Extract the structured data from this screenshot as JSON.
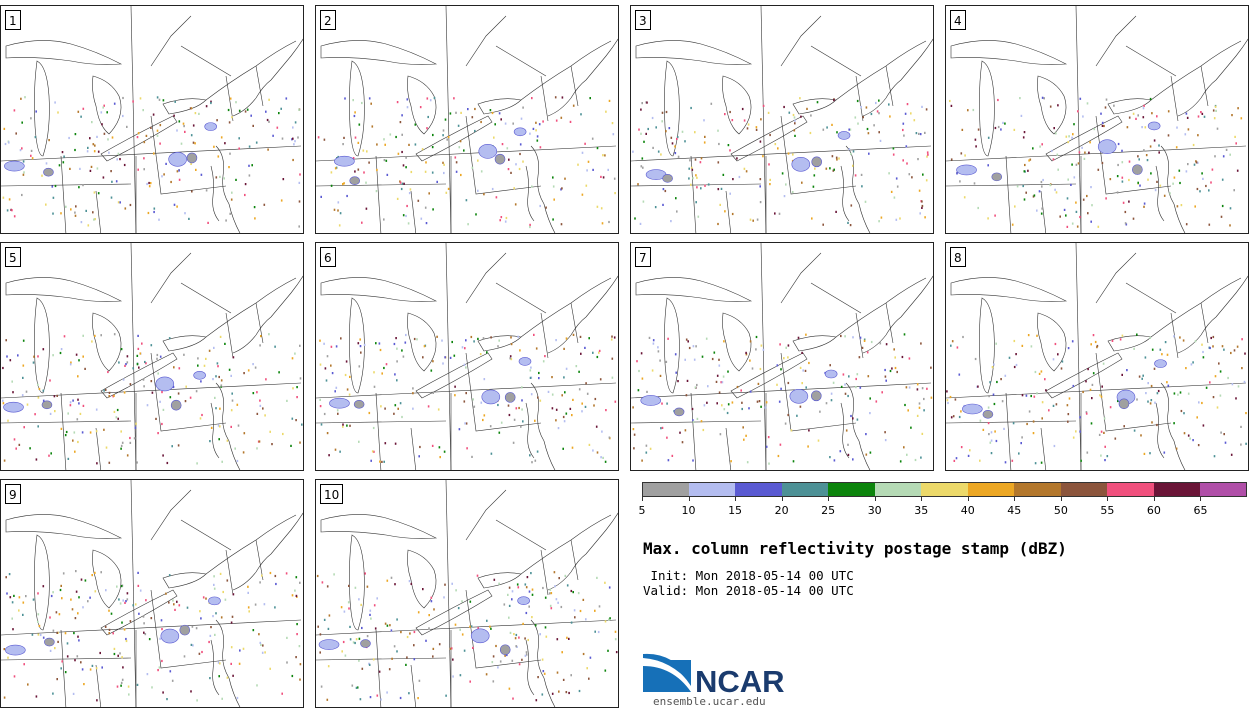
{
  "panels": [
    {
      "label": "1",
      "seed": 11
    },
    {
      "label": "2",
      "seed": 23
    },
    {
      "label": "3",
      "seed": 37
    },
    {
      "label": "4",
      "seed": 41
    },
    {
      "label": "5",
      "seed": 53
    },
    {
      "label": "6",
      "seed": 67
    },
    {
      "label": "7",
      "seed": 71
    },
    {
      "label": "8",
      "seed": 83
    },
    {
      "label": "9",
      "seed": 97
    },
    {
      "label": "10",
      "seed": 101
    }
  ],
  "colorbar": {
    "colors": [
      "#a0a0a0",
      "#b4bdf0",
      "#5a5ad2",
      "#4d9196",
      "#0c840c",
      "#b5dab5",
      "#ecd96a",
      "#eca724",
      "#b3772c",
      "#8c553c",
      "#f0507d",
      "#6a1537",
      "#b04fa8"
    ],
    "ticks": [
      "5",
      "10",
      "15",
      "20",
      "25",
      "30",
      "35",
      "40",
      "45",
      "50",
      "55",
      "60",
      "65"
    ]
  },
  "title": "Max. column reflectivity postage stamp (dBZ)",
  "init": " Init: Mon 2018-05-14 00 UTC",
  "valid": "Valid: Mon 2018-05-14 00 UTC",
  "logo": {
    "text": "NCAR",
    "url": "ensemble.ucar.edu"
  }
}
